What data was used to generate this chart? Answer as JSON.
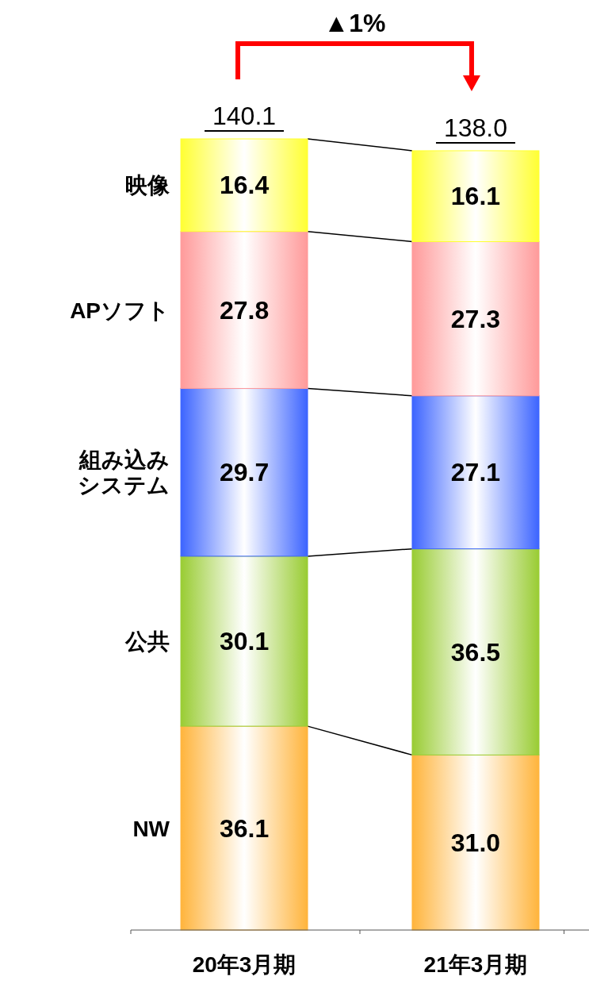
{
  "chart_data": {
    "type": "bar",
    "stacked": true,
    "categories": [
      "20年3月期",
      "21年3月期"
    ],
    "series": [
      {
        "name": "NW",
        "color": "#ffb43c",
        "values": [
          36.1,
          31.0
        ],
        "value_labels": [
          "36.1",
          "31.0"
        ]
      },
      {
        "name": "公共",
        "color": "#99cc33",
        "values": [
          30.1,
          36.5
        ],
        "value_labels": [
          "30.1",
          "36.5"
        ]
      },
      {
        "name": "組み込みシステム",
        "color": "#3c64ff",
        "values": [
          29.7,
          27.1
        ],
        "value_labels": [
          "29.7",
          "27.1"
        ]
      },
      {
        "name": "APソフト",
        "color": "#ff9a9a",
        "values": [
          27.8,
          27.3
        ],
        "value_labels": [
          "27.8",
          "27.3"
        ]
      },
      {
        "name": "映像",
        "color": "#ffff33",
        "values": [
          16.4,
          16.1
        ],
        "value_labels": [
          "16.4",
          "16.1"
        ]
      }
    ],
    "totals": [
      "140.1",
      "138.0"
    ],
    "legend": "left",
    "annotations": [
      "▲1%"
    ]
  }
}
